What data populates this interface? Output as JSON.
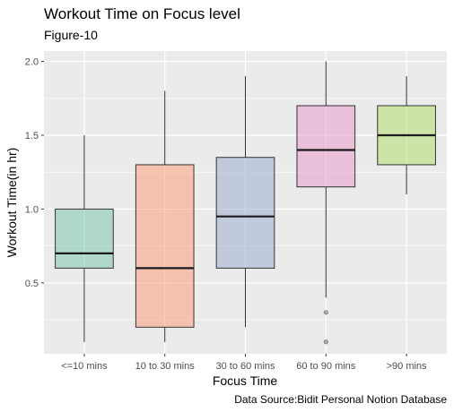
{
  "chart_data": {
    "type": "box",
    "title": "Workout Time on Focus level",
    "subtitle": "Figure-10",
    "xlabel": "Focus Time",
    "ylabel": "Workout Time(in hr)",
    "caption": "Data Source:Bidit Personal Notion Database",
    "categories": [
      "<=10 mins",
      "10 to 30 mins",
      "30 to 60 mins",
      "60 to 90 mins",
      ">90 mins"
    ],
    "ylim": [
      0.02,
      2.07
    ],
    "yticks": [
      0.5,
      1.0,
      1.5,
      2.0
    ],
    "ytick_labels": [
      "0.5",
      "1.0",
      "1.5",
      "2.0"
    ],
    "boxes": [
      {
        "category": "<=10 mins",
        "whisker_low": 0.1,
        "q1": 0.6,
        "median": 0.7,
        "q3": 1.0,
        "whisker_high": 1.5,
        "outliers": [],
        "fill": "#66c2a5"
      },
      {
        "category": "10 to 30 mins",
        "whisker_low": 0.1,
        "q1": 0.2,
        "median": 0.6,
        "q3": 1.3,
        "whisker_high": 1.8,
        "outliers": [],
        "fill": "#fc8d62"
      },
      {
        "category": "30 to 60 mins",
        "whisker_low": 0.2,
        "q1": 0.6,
        "median": 0.95,
        "q3": 1.35,
        "whisker_high": 1.9,
        "outliers": [],
        "fill": "#8da0cb"
      },
      {
        "category": "60 to 90 mins",
        "whisker_low": 0.4,
        "q1": 1.15,
        "median": 1.4,
        "q3": 1.7,
        "whisker_high": 2.0,
        "outliers": [
          0.3,
          0.1
        ],
        "fill": "#e78ac3"
      },
      {
        "category": ">90 mins",
        "whisker_low": 1.1,
        "q1": 1.3,
        "median": 1.5,
        "q3": 1.7,
        "whisker_high": 1.9,
        "outliers": [],
        "fill": "#a6d854"
      }
    ],
    "grid": true,
    "legend": "none",
    "colors": {
      "panel_background": "#ebebeb",
      "gridline": "#ffffff",
      "outlier": "#8c8c8c"
    }
  }
}
